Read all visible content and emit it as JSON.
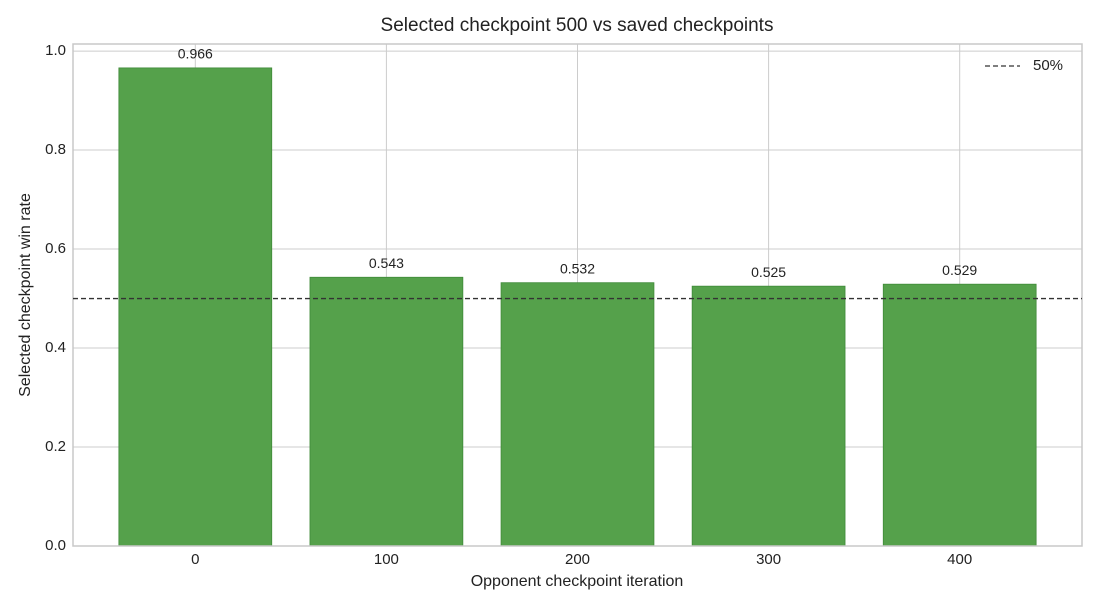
{
  "chart_data": {
    "type": "bar",
    "title": "Selected checkpoint 500 vs saved checkpoints",
    "xlabel": "Opponent checkpoint iteration",
    "ylabel": "Selected checkpoint win rate",
    "categories": [
      "0",
      "100",
      "200",
      "300",
      "400"
    ],
    "values": [
      0.966,
      0.543,
      0.532,
      0.525,
      0.529
    ],
    "color": "#55a14b",
    "ylim": [
      0,
      1.0143
    ],
    "yticks": [
      {
        "value": 0,
        "label": "0.0"
      },
      0.2,
      0.4,
      0.6,
      0.8,
      {
        "value": 1,
        "label": "1.0"
      }
    ],
    "grid": true,
    "reference_line": {
      "value": 0.5,
      "label": "50%",
      "color": "#333333"
    },
    "legend": "upper right"
  }
}
